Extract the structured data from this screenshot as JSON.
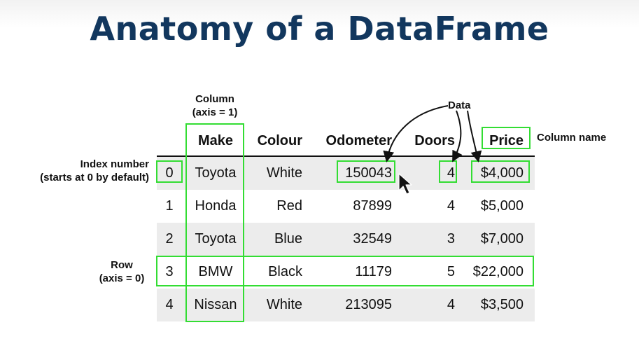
{
  "title": "Anatomy of a DataFrame",
  "annotations": {
    "column_line1": "Column",
    "column_line2": "(axis = 1)",
    "data": "Data",
    "column_name": "Column name",
    "index_line1": "Index number",
    "index_line2": "(starts at 0 by default)",
    "row_line1": "Row",
    "row_line2": "(axis = 0)"
  },
  "table": {
    "headers": [
      "",
      "Make",
      "Colour",
      "Odometer",
      "Doors",
      "Price"
    ],
    "rows": [
      [
        "0",
        "Toyota",
        "White",
        "150043",
        "4",
        "$4,000"
      ],
      [
        "1",
        "Honda",
        "Red",
        "87899",
        "4",
        "$5,000"
      ],
      [
        "2",
        "Toyota",
        "Blue",
        "32549",
        "3",
        "$7,000"
      ],
      [
        "3",
        "BMW",
        "Black",
        "11179",
        "5",
        "$22,000"
      ],
      [
        "4",
        "Nissan",
        "White",
        "213095",
        "4",
        "$3,500"
      ]
    ]
  },
  "colors": {
    "title": "#12375e",
    "highlight": "#33dd33",
    "row_shade": "#ececec"
  },
  "icons": [
    "mouse-cursor-icon"
  ]
}
